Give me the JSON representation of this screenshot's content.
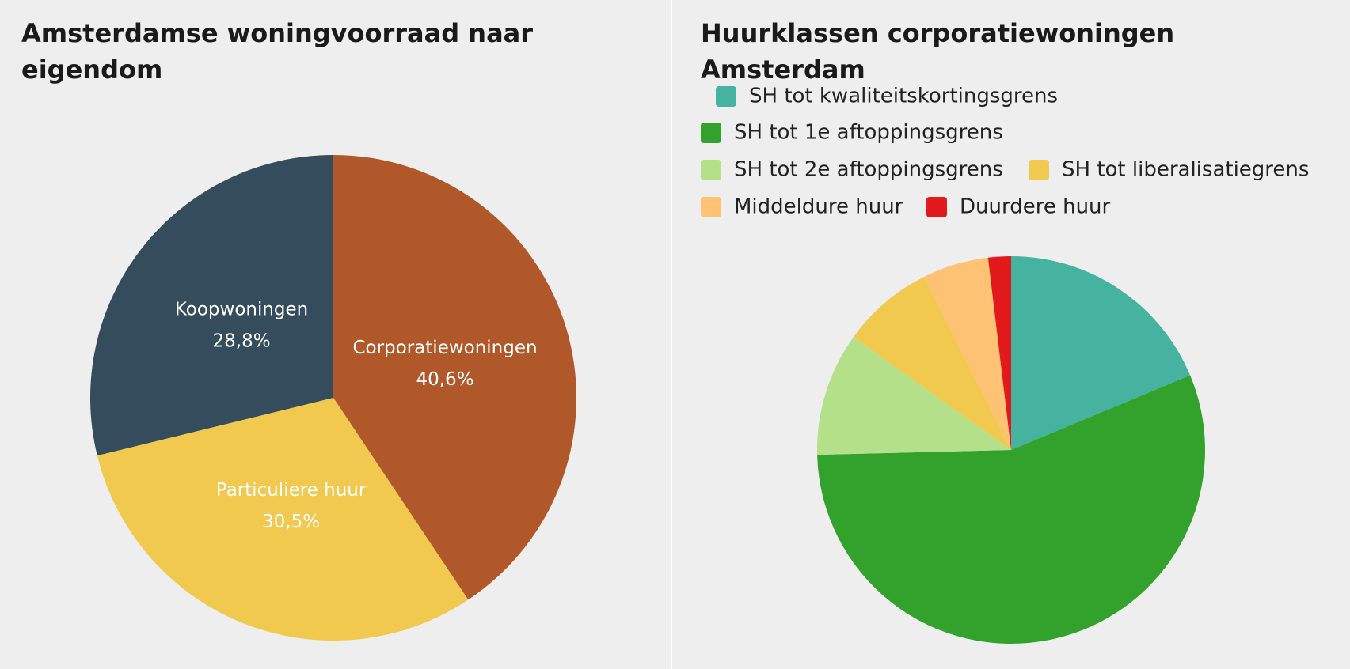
{
  "chart_data": [
    {
      "type": "pie",
      "title": "Amsterdamse woningvoorraad naar eigendom",
      "categories": [
        "Corporatiewoningen",
        "Particuliere huur",
        "Koopwoningen"
      ],
      "values": [
        40.6,
        30.5,
        28.8
      ],
      "value_labels": [
        "40,6%",
        "30,5%",
        "28,8%"
      ],
      "colors": [
        "#b0582a",
        "#f0c94e",
        "#344c5c"
      ],
      "legend": false
    },
    {
      "type": "pie",
      "title": "Huurklassen corporatiewoningen Amsterdam",
      "categories": [
        "SH tot kwaliteitskortingsgrens",
        "SH tot 1e aftoppingsgrens",
        "SH tot 2e aftoppingsgrens",
        "SH tot liberalisatiegrens",
        "Middeldure huur",
        "Duurdere huur"
      ],
      "values": [
        18.7,
        55.9,
        10.3,
        7.7,
        5.5,
        1.9
      ],
      "colors": [
        "#46b3a1",
        "#33a22c",
        "#b4e08a",
        "#f0c94e",
        "#fdc273",
        "#e31a1c"
      ],
      "legend": true
    }
  ]
}
